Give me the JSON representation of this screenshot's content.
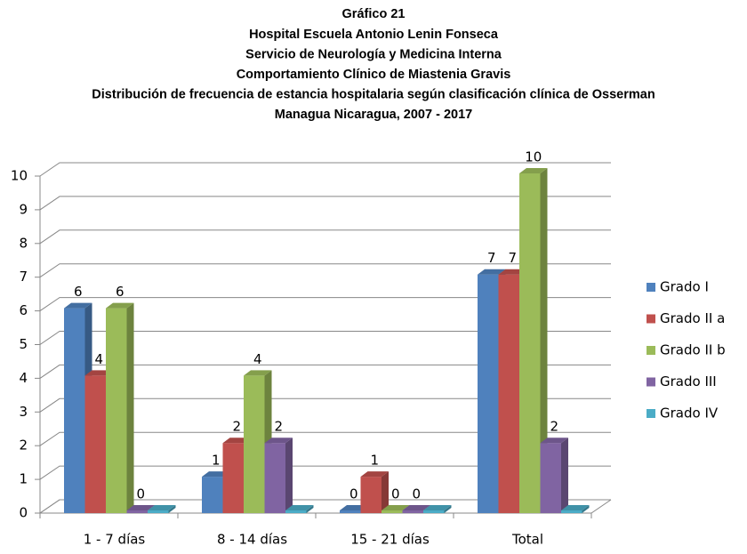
{
  "chart_data": {
    "type": "bar3d",
    "title": "Gráfico 21",
    "subtitle": [
      "Hospital Escuela Antonio Lenin Fonseca",
      "Servicio de Neurología y Medicina Interna",
      "Comportamiento Clínico de Miastenia Gravis",
      "Distribución  de frecuencia de estancia hospitalaria según clasificación clínica de Osserman",
      "Managua Nicaragua, 2007 - 2017"
    ],
    "categories": [
      "1 - 7 días",
      "8 - 14 días",
      "15 - 21 días",
      "Total"
    ],
    "series": [
      {
        "name": "Grado I",
        "color": "#4f81bd",
        "values": [
          6,
          1,
          0,
          7
        ],
        "labels": true
      },
      {
        "name": "Grado II a",
        "color": "#c0504d",
        "values": [
          4,
          2,
          1,
          7
        ],
        "labels": true
      },
      {
        "name": "Grado II b",
        "color": "#9bbb59",
        "values": [
          6,
          4,
          0,
          10
        ],
        "labels": true
      },
      {
        "name": "Grado III",
        "color": "#8064a2",
        "values": [
          0,
          2,
          0,
          2
        ],
        "labels": true
      },
      {
        "name": "Grado IV",
        "color": "#4bacc6",
        "values": [
          0,
          0,
          0,
          0
        ],
        "labels": false
      }
    ],
    "ylim": [
      0,
      10
    ],
    "yticks": [
      0,
      1,
      2,
      3,
      4,
      5,
      6,
      7,
      8,
      9,
      10
    ],
    "grid": true,
    "legend": "right"
  }
}
